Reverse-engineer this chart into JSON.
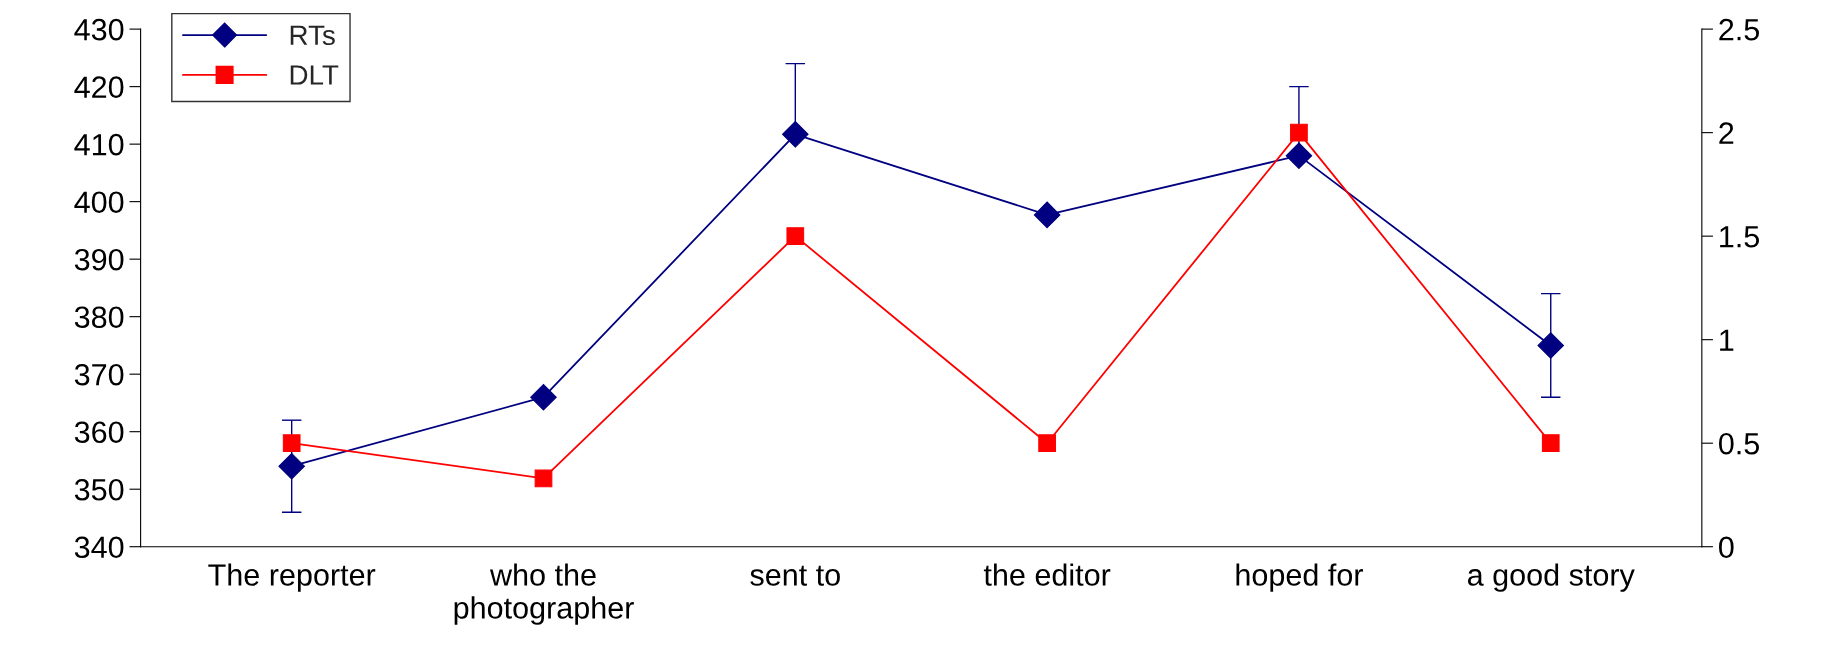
{
  "chart_data": {
    "type": "line",
    "categories": [
      "The reporter",
      "who the\nphotographer",
      "sent to",
      "the editor",
      "hoped for",
      "a good story"
    ],
    "series": [
      {
        "name": "RTs",
        "color": "#000080",
        "marker": "diamond",
        "values": [
          354,
          366,
          411.7,
          397.7,
          408,
          375
        ],
        "errors": [
          [
            346,
            362
          ],
          null,
          [
            411.7,
            424
          ],
          null,
          [
            408,
            420
          ],
          [
            366,
            384
          ]
        ]
      },
      {
        "name": "DLT",
        "color": "#ff0000",
        "marker": "square",
        "axis": "y2",
        "values": [
          0.5,
          0.33,
          1.5,
          0.5,
          2.0,
          0.5
        ]
      }
    ],
    "ylim": [
      340,
      430
    ],
    "yticks": [
      340,
      350,
      360,
      370,
      380,
      390,
      400,
      410,
      420,
      430
    ],
    "y2lim": [
      0,
      2.5
    ],
    "y2ticks": [
      0,
      0.5,
      1,
      1.5,
      2,
      2.5
    ],
    "grid": false,
    "legend": "top left"
  }
}
